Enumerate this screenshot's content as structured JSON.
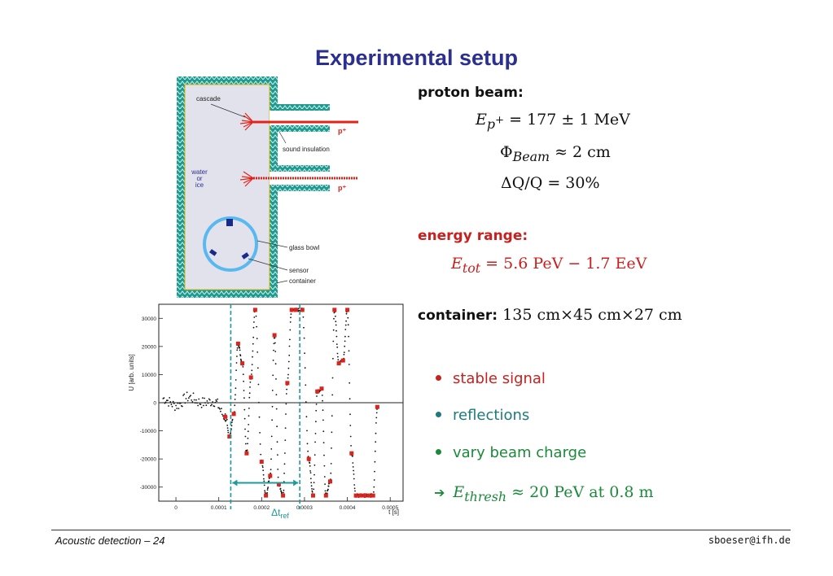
{
  "title": "Experimental setup",
  "diagram": {
    "labels": {
      "cascade": "cascade",
      "p_top": "p⁺",
      "sound_insulation": "sound insulation",
      "water_line1": "water",
      "water_line2": "or",
      "water_line3": "ice",
      "p_bottom": "p⁺",
      "glass_bowl": "glass bowl",
      "sensor": "sensor",
      "container": "container"
    },
    "colors": {
      "wall": "#1e9a90",
      "water": "#e2e2ec",
      "beam": "#e2231a",
      "bowl": "#58b8ef",
      "sensor": "#1a2a8a"
    }
  },
  "proton_beam": {
    "header": "proton beam:",
    "energy_lhs": "E",
    "energy_sub": "p",
    "energy_sup": "+",
    "energy_rhs": " = 177 ± 1 MeV",
    "phi_lhs": "Φ",
    "phi_sub": "Beam",
    "phi_rhs": " ≈ 2 cm",
    "dq": "ΔQ/Q = 30%"
  },
  "energy_range": {
    "header": "energy range:",
    "lhs": "E",
    "sub": "tot",
    "rhs": " = 5.6 PeV − 1.7 EeV"
  },
  "container": {
    "header": "container:",
    "dims": " 135 cm×45 cm×27 cm"
  },
  "bullets": [
    {
      "text": "stable signal",
      "color": "#c8201e"
    },
    {
      "text": "reflections",
      "color": "#1f7a7a"
    },
    {
      "text": "vary beam charge",
      "color": "#1a8a3a"
    }
  ],
  "threshold": {
    "arrow": "➔",
    "lhs": "E",
    "sub": "thresh",
    "rhs": " ≈ 20 PeV at 0.8 m"
  },
  "footer": {
    "left": "Acoustic detection – 24",
    "right": "sboeser@ifh.de"
  },
  "chart_data": {
    "type": "scatter",
    "ylabel": "U [arb. units]",
    "xlabel": "t [s]",
    "xlim": [
      -4e-05,
      0.00053
    ],
    "ylim": [
      -35000,
      35000
    ],
    "x_ticks": [
      "0",
      "0.0001",
      "0.0002",
      "0.0003",
      "0.0004",
      "0.0005"
    ],
    "x_tick_values": [
      0,
      0.0001,
      0.0002,
      0.0003,
      0.0004,
      0.0005
    ],
    "y_ticks": [
      "30000",
      "20000",
      "10000",
      "0",
      "-10000",
      "-20000",
      "-30000"
    ],
    "y_tick_values": [
      30000,
      20000,
      10000,
      0,
      -10000,
      -20000,
      -30000
    ],
    "annotation": "Δt",
    "annotation_sub": "ref",
    "marker_lines_x": [
      0.000128,
      0.000289
    ],
    "series": [
      {
        "x": [
          -3e-05,
          0.0,
          3e-05,
          6e-05,
          9e-05,
          0.000115,
          0.000125,
          0.000135,
          0.000145,
          0.000155,
          0.000165,
          0.000175,
          0.000185,
          0.0002,
          0.00021,
          0.00022,
          0.00023,
          0.00024,
          0.00025,
          0.00026,
          0.00027,
          0.00028,
          0.000295,
          0.00031,
          0.00032,
          0.00033,
          0.00034,
          0.00035,
          0.00036,
          0.00037,
          0.00038,
          0.00039,
          0.0004,
          0.00041,
          0.00042,
          0.00043,
          0.00044,
          0.00045,
          0.00046,
          0.00047
        ],
        "y": [
          1500,
          -1000,
          2000,
          0,
          500,
          -5000,
          -12000,
          -4000,
          21000,
          14000,
          -18000,
          9000,
          33000,
          -21000,
          -33000,
          -26000,
          24000,
          -29000,
          -33000,
          7000,
          33000,
          33000,
          33000,
          -20000,
          -33000,
          4000,
          5000,
          -33000,
          -28000,
          33000,
          14000,
          15000,
          33000,
          -18000,
          -33000,
          -33000,
          -33000,
          -33000,
          -33000,
          -1500
        ]
      }
    ]
  }
}
